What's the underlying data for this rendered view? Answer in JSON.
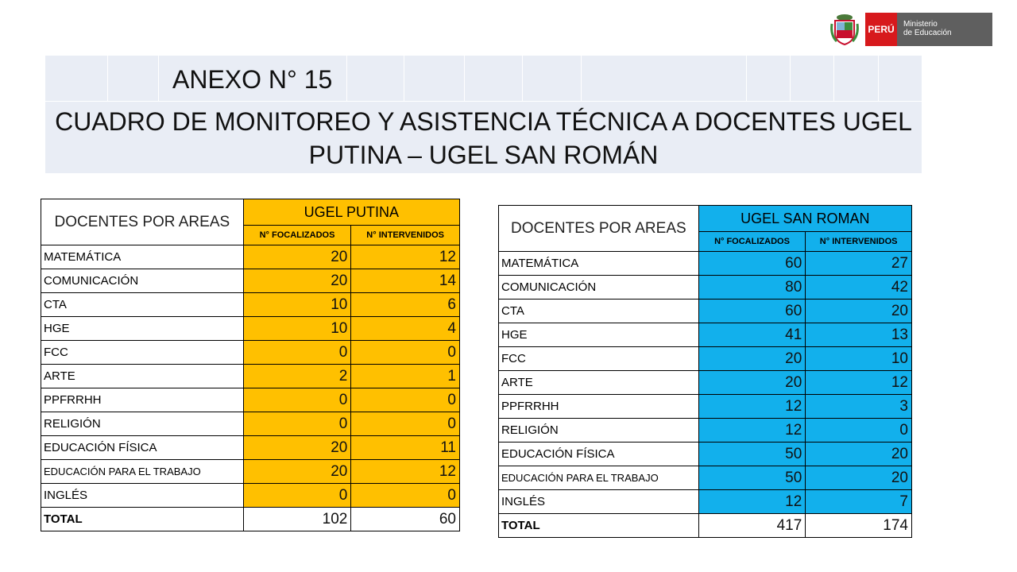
{
  "logo": {
    "country": "PERÚ",
    "ministry_line1": "Ministerio",
    "ministry_line2": "de Educación",
    "shield_icon": "peru-coat-of-arms-icon"
  },
  "header": {
    "anexo": "ANEXO N° 15",
    "title_line1": "CUADRO  DE MONITOREO Y ASISTENCIA TÉCNICA A DOCENTES UGEL",
    "title_line2": "PUTINA – UGEL  SAN ROMÁN"
  },
  "colors": {
    "putina": "#ffc000",
    "san_roman": "#12b0ec",
    "header_bg": "#e9edf5"
  },
  "tables": [
    {
      "area_header": "DOCENTES POR AREAS",
      "group": "UGEL PUTINA",
      "col1": "N° FOCALIZADOS",
      "col2": "N° INTERVENIDOS",
      "rows": [
        {
          "area": "MATEMÁTICA",
          "focalizados": "20",
          "intervenidos": "12"
        },
        {
          "area": "COMUNICACIÓN",
          "focalizados": "20",
          "intervenidos": "14"
        },
        {
          "area": "CTA",
          "focalizados": "10",
          "intervenidos": "6"
        },
        {
          "area": "HGE",
          "focalizados": "10",
          "intervenidos": "4"
        },
        {
          "area": "FCC",
          "focalizados": "0",
          "intervenidos": "0"
        },
        {
          "area": "ARTE",
          "focalizados": "2",
          "intervenidos": "1"
        },
        {
          "area": "PPFRRHH",
          "focalizados": "0",
          "intervenidos": "0"
        },
        {
          "area": "RELIGIÓN",
          "focalizados": "0",
          "intervenidos": "0"
        },
        {
          "area": "EDUCACIÓN FÍSICA",
          "focalizados": "20",
          "intervenidos": "11"
        },
        {
          "area": "EDUCACIÓN PARA EL TRABAJO",
          "focalizados": "20",
          "intervenidos": "12"
        },
        {
          "area": "INGLÉS",
          "focalizados": "0",
          "intervenidos": "0"
        }
      ],
      "total": {
        "area": "TOTAL",
        "focalizados": "102",
        "intervenidos": "60"
      }
    },
    {
      "area_header": "DOCENTES POR AREAS",
      "group": "UGEL SAN ROMAN",
      "col1": "N° FOCALIZADOS",
      "col2": "N° INTERVENIDOS",
      "rows": [
        {
          "area": "MATEMÁTICA",
          "focalizados": "60",
          "intervenidos": "27"
        },
        {
          "area": "COMUNICACIÓN",
          "focalizados": "80",
          "intervenidos": "42"
        },
        {
          "area": "CTA",
          "focalizados": "60",
          "intervenidos": "20"
        },
        {
          "area": "HGE",
          "focalizados": "41",
          "intervenidos": "13"
        },
        {
          "area": "FCC",
          "focalizados": "20",
          "intervenidos": "10"
        },
        {
          "area": "ARTE",
          "focalizados": "20",
          "intervenidos": "12"
        },
        {
          "area": "PPFRRHH",
          "focalizados": "12",
          "intervenidos": "3"
        },
        {
          "area": "RELIGIÓN",
          "focalizados": "12",
          "intervenidos": "0"
        },
        {
          "area": "EDUCACIÓN FÍSICA",
          "focalizados": "50",
          "intervenidos": "20"
        },
        {
          "area": "EDUCACIÓN PARA EL TRABAJO",
          "focalizados": "50",
          "intervenidos": "20"
        },
        {
          "area": "INGLÉS",
          "focalizados": "12",
          "intervenidos": "7"
        }
      ],
      "total": {
        "area": "TOTAL",
        "focalizados": "417",
        "intervenidos": "174"
      }
    }
  ]
}
